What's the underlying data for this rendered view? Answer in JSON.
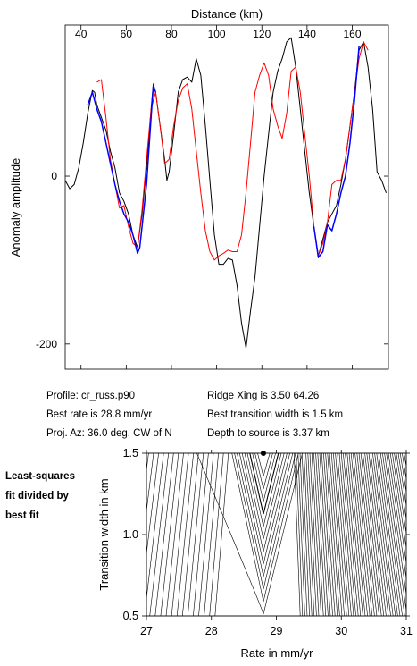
{
  "chart_data": [
    {
      "type": "line",
      "title": "",
      "xlabel": "Distance (km)",
      "ylabel": "Anomaly amplitude",
      "xlim": [
        33,
        176
      ],
      "ylim": [
        -230,
        180
      ],
      "x_ticks": [
        40,
        60,
        80,
        100,
        120,
        140,
        160
      ],
      "y_ticks": [
        0,
        -200
      ],
      "series": [
        {
          "color": "#000000",
          "x": [
            33,
            35,
            37,
            39,
            41,
            43,
            45,
            46,
            47,
            49,
            51,
            53,
            55,
            57,
            59,
            61,
            63,
            65,
            67,
            69,
            71,
            72,
            73,
            75,
            77,
            78,
            79,
            81,
            83,
            85,
            87,
            89,
            91,
            93,
            95,
            97,
            99,
            101,
            103,
            105,
            107,
            109,
            111,
            113,
            115,
            117,
            119,
            121,
            123,
            125,
            127,
            129,
            131,
            133,
            135,
            137,
            139,
            141,
            143,
            145,
            147,
            149,
            151,
            153,
            155,
            157,
            159,
            161,
            163,
            165,
            167,
            169,
            171,
            173,
            175
          ],
          "y": [
            -5,
            -15,
            -10,
            10,
            40,
            75,
            102,
            100,
            85,
            70,
            55,
            30,
            10,
            -20,
            -30,
            -45,
            -70,
            -85,
            -45,
            10,
            80,
            110,
            100,
            60,
            20,
            -5,
            5,
            50,
            100,
            115,
            118,
            112,
            140,
            120,
            60,
            -5,
            -70,
            -105,
            -105,
            -98,
            -100,
            -130,
            -175,
            -205,
            -160,
            -120,
            -60,
            0,
            50,
            100,
            125,
            140,
            160,
            165,
            130,
            80,
            30,
            -20,
            -60,
            -95,
            -75,
            -55,
            -45,
            -35,
            -10,
            20,
            60,
            100,
            150,
            160,
            130,
            80,
            5,
            -5,
            -20
          ]
        },
        {
          "color": "#ff0000",
          "x": [
            47,
            49,
            51,
            53,
            55,
            57,
            59,
            61,
            63,
            65,
            67,
            69,
            71,
            73,
            75,
            77,
            79,
            81,
            83,
            85,
            87,
            89,
            91,
            93,
            95,
            97,
            99,
            101,
            103,
            105,
            107,
            109,
            111,
            113,
            115,
            117,
            119,
            121,
            123,
            125,
            127,
            129,
            131,
            133,
            135,
            137,
            139,
            141,
            143,
            145,
            147,
            149,
            151,
            153,
            155,
            157,
            159,
            161,
            163,
            165,
            167
          ],
          "y": [
            112,
            115,
            70,
            20,
            -10,
            -38,
            -35,
            -60,
            -80,
            -85,
            -40,
            20,
            80,
            100,
            60,
            15,
            20,
            60,
            90,
            105,
            110,
            80,
            30,
            -20,
            -65,
            -90,
            -100,
            -95,
            -92,
            -88,
            -90,
            -90,
            -70,
            -20,
            40,
            100,
            120,
            135,
            120,
            80,
            60,
            45,
            75,
            125,
            130,
            100,
            50,
            0,
            -60,
            -95,
            -80,
            -55,
            -10,
            -5,
            -5,
            20,
            60,
            100,
            140,
            160,
            150
          ]
        },
        {
          "color": "#0000ff",
          "x": [
            43,
            45,
            47,
            49,
            51,
            53,
            55,
            57,
            59,
            61,
            63,
            65,
            66,
            67,
            69,
            71,
            72,
            73,
            143,
            145,
            147,
            149,
            151,
            153,
            155,
            157,
            159,
            161,
            163
          ],
          "y": [
            85,
            100,
            80,
            65,
            40,
            15,
            -10,
            -30,
            -45,
            -55,
            -70,
            -92,
            -85,
            -60,
            -10,
            70,
            108,
            100,
            -60,
            -97,
            -90,
            -58,
            -65,
            -45,
            -20,
            0,
            40,
            90,
            155
          ]
        }
      ]
    },
    {
      "type": "contour",
      "xlabel": "Rate in mm/yr",
      "ylabel": "Transition width in km",
      "xlim": [
        27,
        31
      ],
      "ylim": [
        0.5,
        1.5
      ],
      "x_ticks": [
        27,
        28,
        29,
        30,
        31
      ],
      "y_ticks": [
        0.5,
        1.0,
        1.5
      ],
      "best_fit": {
        "x": 28.8,
        "y": 1.5
      }
    }
  ],
  "info": {
    "profile": "Profile: cr_russ.p90",
    "best_rate": "Best rate is 28.8 mm/yr",
    "proj_az": "Proj. Az: 36.0 deg. CW of N",
    "ridge_xing": "Ridge Xing is 3.50 64.26",
    "best_width": "Best transition width is 1.5 km",
    "depth": "Depth to source is   3.37 km"
  },
  "side_note": [
    "Least-squares",
    "fit divided by",
    "best fit"
  ]
}
